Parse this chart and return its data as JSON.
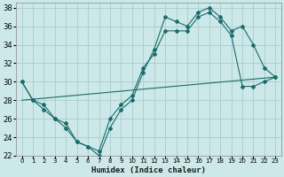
{
  "xlabel": "Humidex (Indice chaleur)",
  "background_color": "#cce8e8",
  "grid_color": "#aacccc",
  "line_color": "#1a6b6b",
  "xlim": [
    -0.5,
    23.5
  ],
  "ylim": [
    22,
    38.5
  ],
  "yticks": [
    22,
    24,
    26,
    28,
    30,
    32,
    34,
    36,
    38
  ],
  "xticks": [
    0,
    1,
    2,
    3,
    4,
    5,
    6,
    7,
    8,
    9,
    10,
    11,
    12,
    13,
    14,
    15,
    16,
    17,
    18,
    19,
    20,
    21,
    22,
    23
  ],
  "series1_x": [
    0,
    1,
    2,
    3,
    4,
    5,
    6,
    7,
    8,
    9,
    10,
    11,
    12,
    13,
    14,
    15,
    16,
    17,
    18,
    19,
    20,
    21,
    22,
    23
  ],
  "series1_y": [
    30,
    28,
    27,
    26,
    25,
    23.5,
    23,
    22,
    25,
    27,
    28,
    31,
    33.5,
    37,
    36.5,
    36,
    37.5,
    38,
    37,
    35.5,
    36,
    34,
    31.5,
    30.5
  ],
  "series2_x": [
    0,
    1,
    2,
    3,
    4,
    5,
    6,
    7,
    8,
    9,
    10,
    11,
    12,
    13,
    14,
    15,
    16,
    17,
    18,
    19,
    20,
    21,
    22,
    23
  ],
  "series2_y": [
    30,
    28,
    27.5,
    26,
    25.5,
    23.5,
    23,
    22.5,
    26,
    27.5,
    28.5,
    31.5,
    33,
    35.5,
    35.5,
    35.5,
    37,
    37.5,
    36.5,
    35,
    29.5,
    29.5,
    30,
    30.5
  ],
  "series3_x": [
    0,
    23
  ],
  "series3_y": [
    28,
    30.5
  ]
}
